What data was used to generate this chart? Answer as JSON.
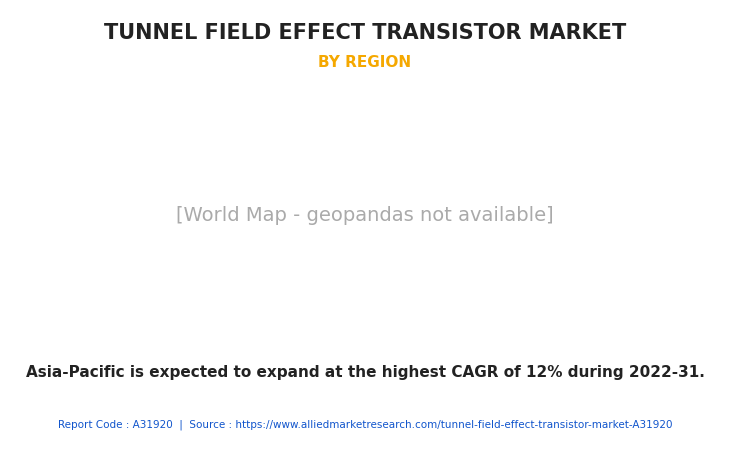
{
  "title": "TUNNEL FIELD EFFECT TRANSISTOR MARKET",
  "subtitle": "BY REGION",
  "subtitle_color": "#F5A800",
  "title_color": "#222222",
  "background_color": "#ffffff",
  "map_land_color": "#8DC98D",
  "map_border_color": "#a8c8e8",
  "north_america_highlight": "#ffffff",
  "annotation_text": "Asia-Pacific is expected to expand at the highest CAGR of 12% during 2022-31.",
  "footer_text": "Report Code : A31920  |  Source : https://www.alliedmarketresearch.com/tunnel-field-effect-transistor-market-A31920",
  "footer_color": "#1155CC",
  "title_fontsize": 15,
  "subtitle_fontsize": 11,
  "annotation_fontsize": 11,
  "footer_fontsize": 7.5
}
